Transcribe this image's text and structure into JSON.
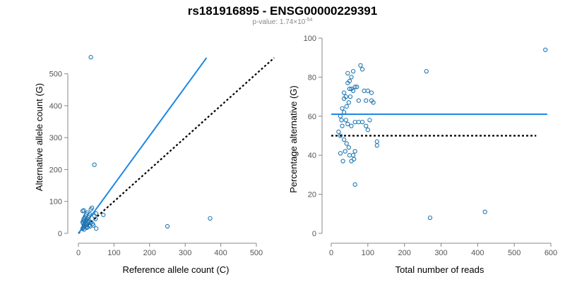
{
  "title": "rs181916895 - ENSG00000229391",
  "subtitle": {
    "prefix": "p-value: 1.74",
    "times": "×",
    "base": "10",
    "exponent": "-54"
  },
  "colors": {
    "points": "#1f77b4",
    "fit_line": "#1e88e5",
    "reference_line": "#000000"
  },
  "chart_data": [
    {
      "type": "scatter",
      "title": "",
      "xlabel": "Reference allele count (C)",
      "ylabel": "Alternative allele count (G)",
      "xlim": [
        0,
        500
      ],
      "ylim": [
        0,
        550
      ],
      "xticks": [
        0,
        100,
        200,
        300,
        400,
        500
      ],
      "yticks": [
        0,
        100,
        200,
        300,
        400,
        500
      ],
      "points": [
        [
          35,
          552
        ],
        [
          45,
          215
        ],
        [
          250,
          22
        ],
        [
          370,
          47
        ],
        [
          70,
          58
        ],
        [
          12,
          15
        ],
        [
          14,
          18
        ],
        [
          15,
          22
        ],
        [
          16,
          12
        ],
        [
          18,
          25
        ],
        [
          20,
          30
        ],
        [
          22,
          28
        ],
        [
          12,
          35
        ],
        [
          14,
          40
        ],
        [
          15,
          45
        ],
        [
          18,
          50
        ],
        [
          20,
          55
        ],
        [
          22,
          60
        ],
        [
          25,
          65
        ],
        [
          12,
          70
        ],
        [
          15,
          72
        ],
        [
          25,
          45
        ],
        [
          28,
          50
        ],
        [
          30,
          55
        ],
        [
          32,
          60
        ],
        [
          35,
          75
        ],
        [
          38,
          80
        ],
        [
          30,
          40
        ],
        [
          35,
          35
        ],
        [
          40,
          30
        ],
        [
          45,
          55
        ],
        [
          42,
          25
        ],
        [
          50,
          62
        ],
        [
          25,
          20
        ],
        [
          20,
          20
        ],
        [
          28,
          35
        ],
        [
          30,
          25
        ],
        [
          48,
          45
        ],
        [
          16,
          28
        ],
        [
          13,
          32
        ],
        [
          17,
          38
        ],
        [
          22,
          42
        ],
        [
          24,
          18
        ],
        [
          26,
          38
        ],
        [
          50,
          15
        ],
        [
          33,
          22
        ],
        [
          19,
          48
        ]
      ],
      "fit_line": [
        [
          0,
          0
        ],
        [
          360,
          550
        ]
      ],
      "reference_line": [
        [
          0,
          0
        ],
        [
          550,
          550
        ]
      ]
    },
    {
      "type": "scatter",
      "title": "",
      "xlabel": "Total number of reads",
      "ylabel": "Percentage alternative (G)",
      "xlim": [
        0,
        600
      ],
      "ylim": [
        0,
        100
      ],
      "xticks": [
        0,
        100,
        200,
        300,
        400,
        500,
        600
      ],
      "yticks": [
        0,
        20,
        40,
        60,
        80,
        100
      ],
      "points": [
        [
          585,
          94
        ],
        [
          260,
          83
        ],
        [
          270,
          8
        ],
        [
          420,
          11
        ],
        [
          65,
          25
        ],
        [
          80,
          86
        ],
        [
          85,
          84
        ],
        [
          60,
          83
        ],
        [
          55,
          80
        ],
        [
          50,
          78
        ],
        [
          45,
          77
        ],
        [
          35,
          72
        ],
        [
          40,
          70
        ],
        [
          55,
          74
        ],
        [
          60,
          73
        ],
        [
          65,
          75
        ],
        [
          70,
          75
        ],
        [
          90,
          73
        ],
        [
          100,
          73
        ],
        [
          110,
          72
        ],
        [
          75,
          68
        ],
        [
          95,
          68
        ],
        [
          115,
          67
        ],
        [
          30,
          64
        ],
        [
          35,
          62
        ],
        [
          25,
          60
        ],
        [
          40,
          58
        ],
        [
          45,
          56
        ],
        [
          55,
          55
        ],
        [
          65,
          57
        ],
        [
          75,
          57
        ],
        [
          85,
          57
        ],
        [
          105,
          58
        ],
        [
          28,
          58
        ],
        [
          30,
          55
        ],
        [
          20,
          52
        ],
        [
          25,
          50
        ],
        [
          35,
          48
        ],
        [
          42,
          46
        ],
        [
          48,
          44
        ],
        [
          38,
          42
        ],
        [
          50,
          40
        ],
        [
          60,
          40
        ],
        [
          65,
          42
        ],
        [
          25,
          41
        ],
        [
          32,
          37
        ],
        [
          55,
          37
        ],
        [
          62,
          38
        ],
        [
          125,
          47
        ],
        [
          125,
          45
        ],
        [
          95,
          55
        ],
        [
          100,
          53
        ],
        [
          42,
          65
        ],
        [
          48,
          67
        ],
        [
          52,
          70
        ],
        [
          35,
          69
        ],
        [
          110,
          68
        ],
        [
          45,
          82
        ],
        [
          50,
          74
        ]
      ],
      "fit_y": 61,
      "reference_y": 50
    }
  ]
}
